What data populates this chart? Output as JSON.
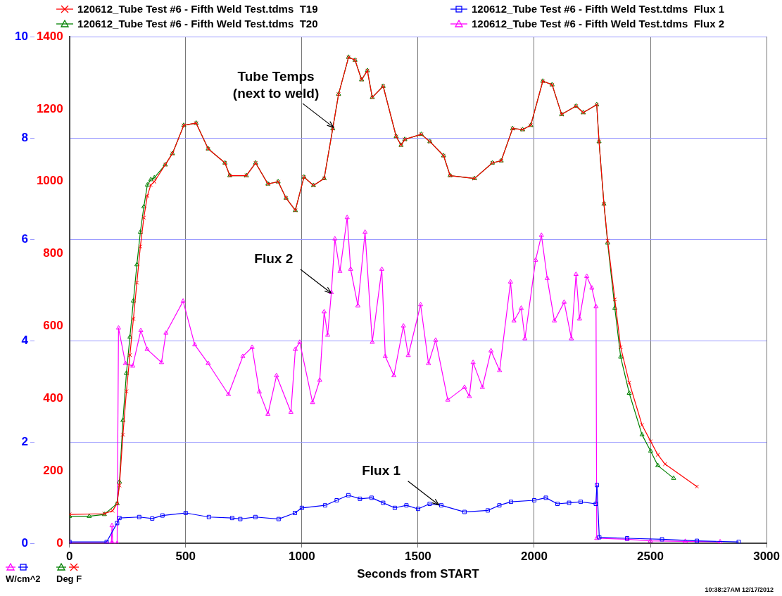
{
  "chart_data": {
    "type": "line",
    "xlabel": "Seconds from START",
    "ylabel": "Deg F",
    "y2label": "W/cm^2",
    "xlim": [
      0,
      3000
    ],
    "xticks": [
      0,
      500,
      1000,
      1500,
      2000,
      2500,
      3000
    ],
    "ylim": [
      0,
      1400
    ],
    "yticks": [
      0,
      200,
      400,
      600,
      800,
      1000,
      1200,
      1400
    ],
    "y2lim": [
      0,
      10
    ],
    "y2ticks": [
      0,
      2,
      4,
      6,
      8,
      10
    ],
    "grid": true,
    "legend": "top",
    "annotations": [
      {
        "text": "Tube Temps\n(next to weld)",
        "x": 1137,
        "y": 1149
      },
      {
        "text": "Flux 2",
        "x": 1127,
        "y": 691
      },
      {
        "text": "Flux 1",
        "x": 1590,
        "y": 106
      },
      "10:38:27AM 12/17/2012"
    ],
    "series": [
      {
        "name": "120612_Tube Test #6 - Fifth Weld Test.tdms  T19",
        "color": "#ff0000",
        "marker": "cross",
        "x": [
          0,
          150,
          185,
          205,
          215,
          230,
          245,
          260,
          275,
          290,
          305,
          320,
          335,
          350,
          365,
          412,
          443,
          492,
          545,
          597,
          669,
          690,
          761,
          801,
          854,
          898,
          932,
          972,
          1009,
          1050,
          1096,
          1133,
          1158,
          1201,
          1229,
          1257,
          1282,
          1303,
          1350,
          1406,
          1427,
          1443,
          1514,
          1551,
          1610,
          1638,
          1743,
          1820,
          1858,
          1907,
          1950,
          1985,
          2037,
          2077,
          2118,
          2180,
          2211,
          2269,
          2279,
          2300,
          2316,
          2347,
          2372,
          2409,
          2464,
          2501,
          2532,
          2563,
          2700
        ],
        "values": [
          80,
          82,
          90,
          110,
          160,
          300,
          420,
          520,
          620,
          720,
          820,
          900,
          960,
          990,
          999,
          1046,
          1077,
          1155,
          1161,
          1090,
          1051,
          1016,
          1016,
          1051,
          993,
          999,
          954,
          920,
          1012,
          989,
          1008,
          1146,
          1241,
          1343,
          1335,
          1281,
          1306,
          1232,
          1263,
          1124,
          1100,
          1116,
          1130,
          1110,
          1071,
          1016,
          1008,
          1051,
          1057,
          1146,
          1143,
          1155,
          1277,
          1267,
          1185,
          1208,
          1190,
          1212,
          1110,
          938,
          836,
          674,
          542,
          444,
          327,
          282,
          245,
          219,
          157
        ]
      },
      {
        "name": "120612_Tube Test #6 - Fifth Weld Test.tdms  T20",
        "color": "#008000",
        "marker": "triangle",
        "x": [
          0,
          85,
          150,
          205,
          215,
          230,
          245,
          260,
          275,
          290,
          305,
          320,
          335,
          350,
          365,
          412,
          443,
          492,
          545,
          597,
          669,
          690,
          761,
          801,
          854,
          898,
          932,
          972,
          1009,
          1050,
          1096,
          1133,
          1158,
          1201,
          1229,
          1257,
          1282,
          1303,
          1350,
          1406,
          1427,
          1443,
          1514,
          1551,
          1610,
          1638,
          1743,
          1820,
          1858,
          1907,
          1950,
          1985,
          2037,
          2077,
          2118,
          2180,
          2211,
          2269,
          2279,
          2300,
          2316,
          2347,
          2372,
          2409,
          2464,
          2501,
          2532,
          2600
        ],
        "values": [
          75,
          75,
          80,
          110,
          170,
          340,
          470,
          570,
          670,
          770,
          860,
          930,
          990,
          1005,
          1010,
          1046,
          1077,
          1155,
          1161,
          1090,
          1051,
          1016,
          1016,
          1051,
          993,
          999,
          954,
          920,
          1012,
          989,
          1008,
          1146,
          1241,
          1343,
          1335,
          1281,
          1306,
          1232,
          1263,
          1124,
          1100,
          1116,
          1130,
          1110,
          1071,
          1016,
          1008,
          1051,
          1057,
          1146,
          1143,
          1155,
          1277,
          1267,
          1185,
          1208,
          1190,
          1212,
          1110,
          938,
          830,
          650,
          515,
          415,
          300,
          255,
          215,
          180
        ]
      },
      {
        "name": "120612_Tube Test #6 - Fifth Weld Test.tdms  Flux 1",
        "color": "#0000ff",
        "marker": "square",
        "axis": "y2",
        "x": [
          0,
          160,
          205,
          215,
          300,
          356,
          400,
          500,
          600,
          700,
          735,
          800,
          900,
          970,
          1000,
          1100,
          1150,
          1200,
          1250,
          1300,
          1350,
          1400,
          1450,
          1500,
          1550,
          1600,
          1700,
          1800,
          1850,
          1900,
          2000,
          2050,
          2100,
          2150,
          2200,
          2265,
          2270,
          2280,
          2400,
          2550,
          2700,
          2880
        ],
        "values": [
          0.03,
          0.03,
          0.4,
          0.5,
          0.52,
          0.49,
          0.55,
          0.6,
          0.52,
          0.5,
          0.48,
          0.52,
          0.48,
          0.6,
          0.7,
          0.75,
          0.85,
          0.95,
          0.88,
          0.9,
          0.8,
          0.7,
          0.75,
          0.68,
          0.78,
          0.75,
          0.62,
          0.65,
          0.75,
          0.82,
          0.85,
          0.9,
          0.78,
          0.8,
          0.82,
          0.78,
          1.15,
          0.12,
          0.1,
          0.08,
          0.05,
          0.03
        ]
      },
      {
        "name": "120612_Tube Test #6 - Fifth Weld Test.tdms  Flux 2",
        "color": "#ff00ff",
        "marker": "triangle",
        "axis": "y2",
        "x": [
          0,
          160,
          180,
          183,
          186,
          205,
          211,
          241,
          272,
          307,
          334,
          396,
          415,
          489,
          539,
          597,
          684,
          746,
          786,
          817,
          854,
          891,
          953,
          972,
          991,
          1046,
          1077,
          1096,
          1111,
          1127,
          1142,
          1164,
          1195,
          1210,
          1241,
          1272,
          1303,
          1344,
          1359,
          1396,
          1437,
          1458,
          1511,
          1545,
          1576,
          1628,
          1700,
          1721,
          1737,
          1777,
          1814,
          1851,
          1898,
          1913,
          1944,
          1960,
          2006,
          2031,
          2056,
          2087,
          2129,
          2160,
          2180,
          2195,
          2226,
          2248,
          2266,
          2269,
          2400,
          2500,
          2650,
          2800
        ],
        "values": [
          0,
          0,
          0,
          0.35,
          0,
          0,
          4.25,
          3.55,
          3.5,
          4.2,
          3.83,
          3.57,
          4.15,
          4.78,
          3.92,
          3.55,
          2.94,
          3.69,
          3.87,
          2.99,
          2.55,
          3.31,
          2.59,
          3.83,
          3.97,
          2.78,
          3.22,
          4.57,
          4.11,
          4.95,
          6.01,
          5.37,
          6.43,
          5.41,
          4.69,
          6.14,
          3.97,
          5.41,
          3.69,
          3.31,
          4.29,
          3.71,
          4.71,
          3.55,
          4.01,
          2.83,
          3.08,
          2.9,
          3.57,
          3.08,
          3.8,
          3.41,
          5.16,
          4.39,
          4.64,
          4.04,
          5.59,
          6.08,
          5.23,
          4.39,
          4.76,
          4.04,
          5.31,
          4.43,
          5.27,
          5.04,
          4.67,
          0.1,
          0.08,
          0.05,
          0.04,
          0.03
        ]
      }
    ]
  }
}
